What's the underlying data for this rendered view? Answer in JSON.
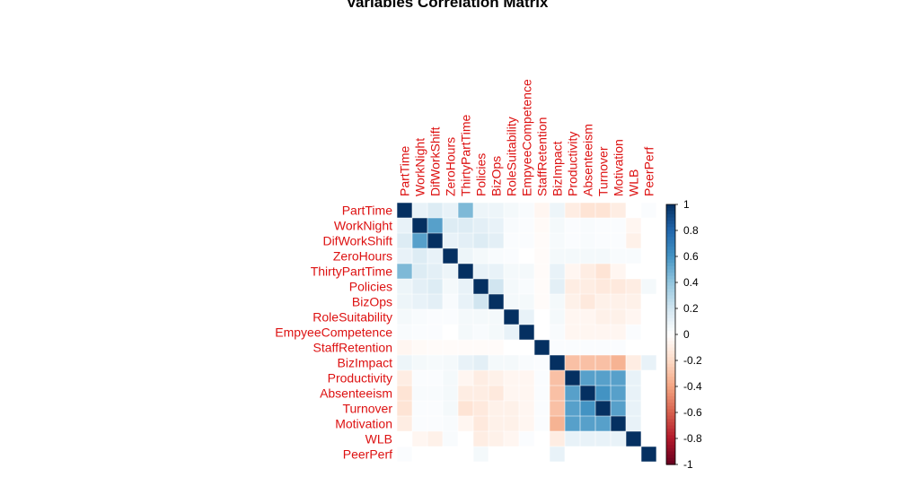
{
  "chart_data": {
    "type": "heatmap",
    "title": "Variables Correlation Matrix",
    "variables": [
      "PartTime",
      "WorkNight",
      "DifWorkShift",
      "ZeroHours",
      "ThirtyPartTime",
      "Policies",
      "BizOps",
      "RoleSuitability",
      "EmpyeeCompetence",
      "StaffRetention",
      "BizImpact",
      "Productivity",
      "Absenteeism",
      "Turnover",
      "Motivation",
      "WLB",
      "PeerPerf"
    ],
    "matrix": [
      [
        1,
        0.1,
        0.15,
        0.1,
        0.45,
        0.08,
        0.08,
        0.05,
        0.03,
        -0.05,
        0.08,
        -0.1,
        -0.15,
        -0.15,
        -0.1,
        0.0,
        0.02
      ],
      [
        0.1,
        1,
        0.55,
        0.15,
        0.15,
        0.12,
        0.1,
        0.03,
        0.02,
        -0.03,
        0.05,
        0.02,
        0.03,
        0.02,
        0.02,
        -0.05,
        0.0
      ],
      [
        0.15,
        0.55,
        1,
        0.1,
        0.12,
        0.15,
        0.12,
        0.02,
        0.02,
        -0.02,
        0.04,
        0.02,
        0.03,
        0.02,
        0.02,
        -0.08,
        0.0
      ],
      [
        0.1,
        0.15,
        0.1,
        1,
        0.08,
        0.05,
        0.03,
        0.02,
        0.0,
        -0.02,
        0.05,
        0.05,
        0.05,
        0.05,
        0.03,
        0.03,
        0.0
      ],
      [
        0.45,
        0.15,
        0.12,
        0.08,
        1,
        0.1,
        0.1,
        0.05,
        0.05,
        -0.02,
        0.1,
        -0.05,
        -0.1,
        -0.15,
        -0.05,
        0.0,
        0.0
      ],
      [
        0.08,
        0.12,
        0.15,
        0.05,
        0.1,
        1,
        0.2,
        0.05,
        0.03,
        -0.02,
        0.12,
        -0.1,
        -0.1,
        -0.12,
        -0.12,
        -0.1,
        0.05
      ],
      [
        0.08,
        0.1,
        0.12,
        0.03,
        0.1,
        0.2,
        1,
        0.05,
        0.05,
        -0.02,
        0.05,
        -0.08,
        -0.12,
        -0.08,
        -0.08,
        -0.08,
        0.0
      ],
      [
        0.05,
        0.03,
        0.02,
        0.02,
        0.05,
        0.05,
        0.05,
        1,
        0.1,
        0.0,
        0.05,
        -0.05,
        -0.05,
        -0.08,
        -0.08,
        -0.05,
        0.0
      ],
      [
        0.03,
        0.02,
        0.02,
        0.0,
        0.05,
        0.03,
        0.05,
        0.1,
        1,
        0.0,
        0.03,
        -0.05,
        -0.05,
        -0.05,
        -0.05,
        0.02,
        0.0
      ],
      [
        -0.05,
        -0.03,
        -0.02,
        -0.02,
        -0.02,
        -0.02,
        -0.02,
        0.0,
        0.0,
        1,
        0.02,
        0.02,
        0.02,
        0.02,
        0.02,
        0.0,
        0.0
      ],
      [
        0.08,
        0.05,
        0.04,
        0.05,
        0.1,
        0.12,
        0.05,
        0.05,
        0.03,
        0.02,
        1,
        -0.3,
        -0.3,
        -0.3,
        -0.35,
        -0.1,
        0.1
      ],
      [
        -0.1,
        0.02,
        0.02,
        0.05,
        -0.05,
        -0.1,
        -0.08,
        -0.05,
        -0.05,
        0.02,
        -0.3,
        1,
        0.55,
        0.55,
        0.55,
        0.1,
        0.0
      ],
      [
        -0.15,
        0.03,
        0.03,
        0.05,
        -0.1,
        -0.1,
        -0.12,
        -0.05,
        -0.05,
        0.02,
        -0.3,
        0.55,
        1,
        0.6,
        0.55,
        0.1,
        0.0
      ],
      [
        -0.15,
        0.02,
        0.02,
        0.05,
        -0.15,
        -0.12,
        -0.08,
        -0.08,
        -0.05,
        0.02,
        -0.3,
        0.55,
        0.6,
        1,
        0.55,
        0.1,
        0.0
      ],
      [
        -0.1,
        0.02,
        0.02,
        0.03,
        -0.05,
        -0.12,
        -0.08,
        -0.08,
        -0.05,
        0.02,
        -0.35,
        0.55,
        0.55,
        0.55,
        1,
        0.1,
        0.0
      ],
      [
        0.0,
        -0.05,
        -0.08,
        0.03,
        0.0,
        -0.1,
        -0.08,
        -0.05,
        0.02,
        0.0,
        -0.1,
        0.1,
        0.1,
        0.1,
        0.1,
        1,
        0.0
      ],
      [
        0.02,
        0.0,
        0.0,
        0.0,
        0.0,
        0.05,
        0.0,
        0.0,
        0.0,
        0.0,
        0.1,
        0.0,
        0.0,
        0.0,
        0.0,
        0.0,
        1
      ]
    ],
    "colorbar": {
      "range": [
        -1,
        1
      ],
      "ticks": [
        "1",
        "0.8",
        "0.6",
        "0.4",
        "0.2",
        "0",
        "-0.2",
        "-0.4",
        "-0.6",
        "-0.8",
        "-1"
      ],
      "colors": [
        "#67001F",
        "#B2182B",
        "#D6604D",
        "#F4A582",
        "#FDDBC7",
        "#FFFFFF",
        "#D1E5F0",
        "#92C5DE",
        "#4393C3",
        "#2166AC",
        "#053061"
      ]
    },
    "label_color": "#dd1111"
  }
}
